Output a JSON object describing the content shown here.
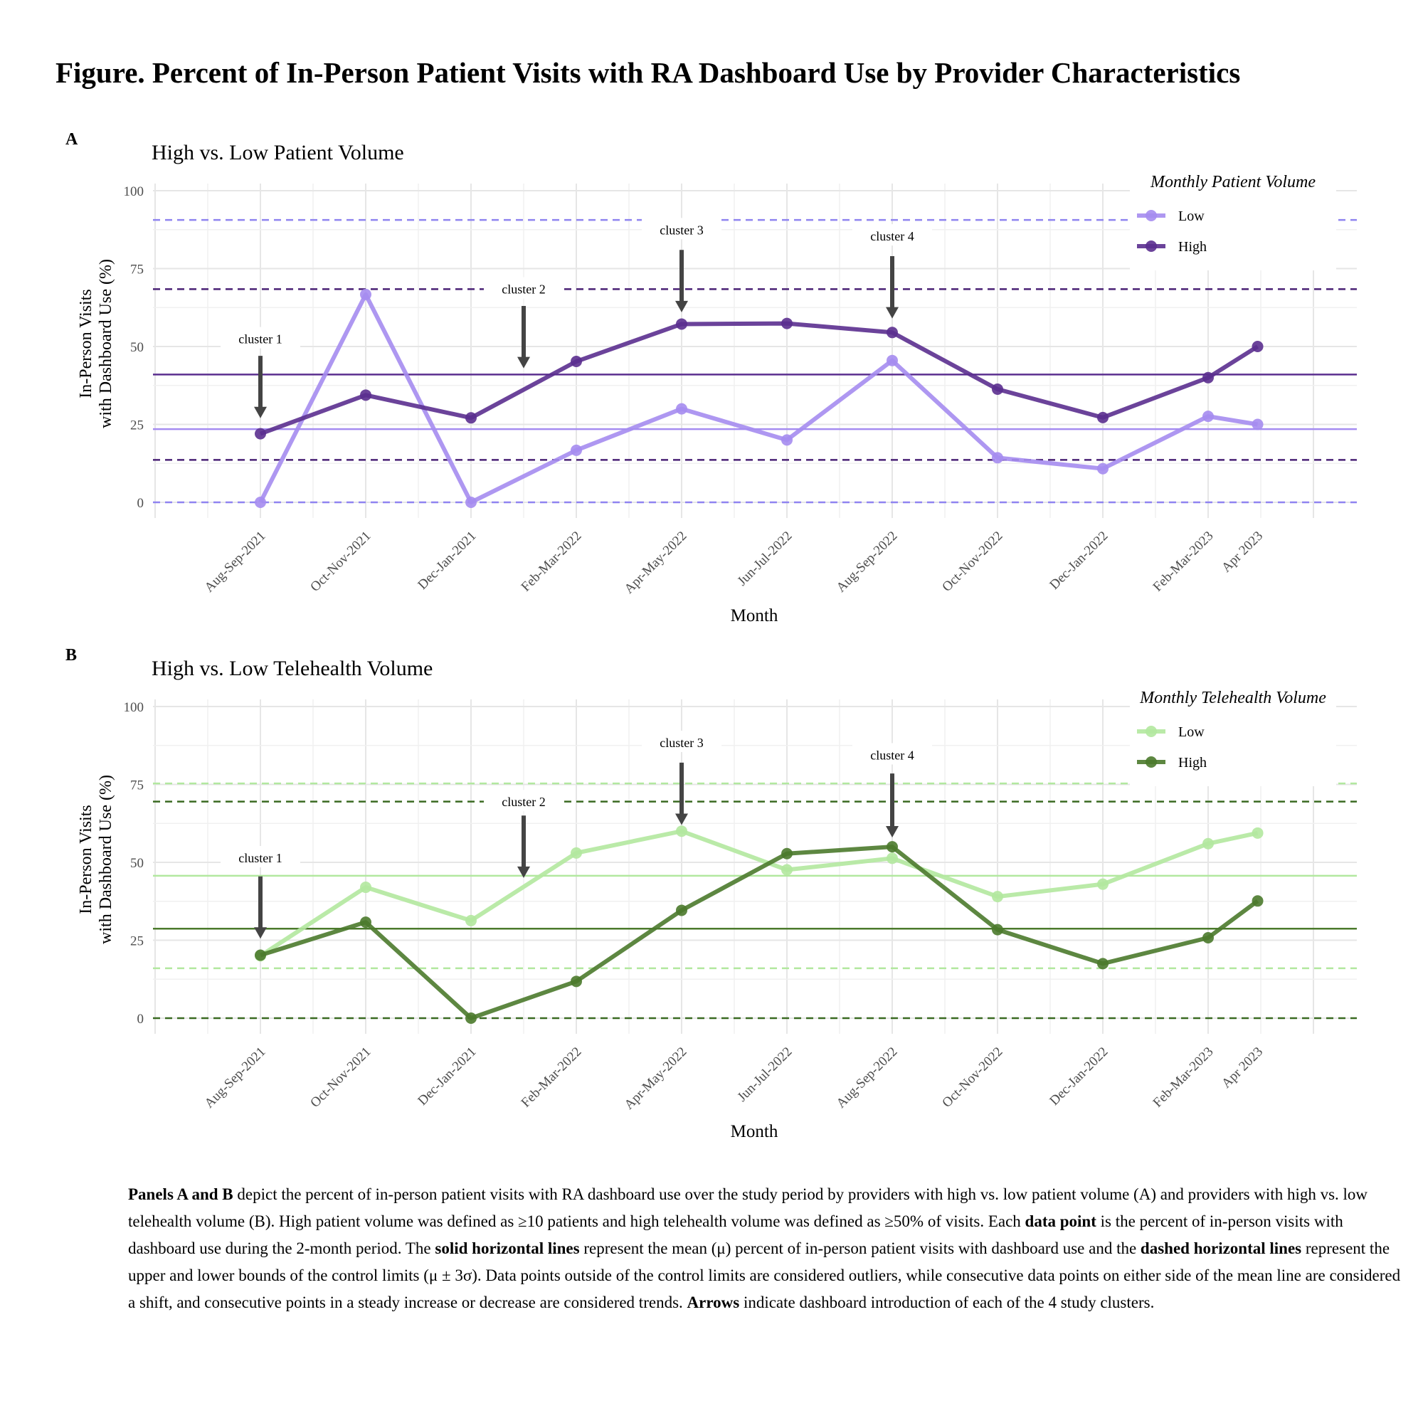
{
  "figure_title": "Figure. Percent of In-Person Patient Visits with RA Dashboard Use by Provider Characteristics",
  "caption": {
    "p1_bold": "Panels A and B",
    "p1": " depict the percent of in-person patient visits with RA dashboard use over the study period by providers with high vs. low patient volume (A) and providers with high vs. low telehealth volume (B). High patient volume was defined as ≥10 patients and high telehealth volume was defined as ≥50% of visits. Each ",
    "p2_bold": "data point",
    "p2": " is the percent of in-person visits with dashboard use during the 2-month period. The ",
    "p3_bold": "solid horizontal lines",
    "p3": " represent the mean (μ) percent of in-person patient visits with dashboard use and the ",
    "p4_bold": "dashed horizontal lines",
    "p4": " represent the upper and lower bounds of the control limits (μ ± 3σ). Data points outside of the control limits are considered outliers, while consecutive data points on either side of the mean line are considered a shift, and consecutive points in a steady increase or decrease are considered trends. ",
    "p5_bold": "Arrows",
    "p5": " indicate dashboard introduction of each of the 4 study clusters."
  },
  "chart_data": [
    {
      "panel": "A",
      "type": "line",
      "title": "High vs. Low Patient Volume",
      "xlabel": "Month",
      "ylabel_lines": [
        "In-Person Visits",
        "with Dashboard Use (%)"
      ],
      "ylim": [
        0,
        100
      ],
      "y_ticks": [
        0,
        25,
        50,
        75,
        100
      ],
      "categories": [
        "Aug-Sep-2021",
        "Oct-Nov-2021",
        "Dec-Jan-2021",
        "Feb-Mar-2022",
        "Apr-May-2022",
        "Jun-Jul-2022",
        "Aug-Sep-2022",
        "Oct-Nov-2022",
        "Dec-Jan-2022",
        "Feb-Mar-2023",
        "Apr 2023"
      ],
      "x_positions": [
        0,
        1,
        2,
        3,
        4,
        5,
        6,
        7,
        8,
        9,
        9.47
      ],
      "legend_title": "Monthly Patient Volume",
      "legend_position": "top-right",
      "series": [
        {
          "name": "Low",
          "color": "#a58cf0",
          "values": [
            0,
            66.7,
            0,
            16.7,
            30,
            20,
            45.5,
            14.3,
            10.8,
            27.6,
            25
          ],
          "mean": 23.5,
          "lcl": 0,
          "ucl": 90.6,
          "limit_color": "#8f84f0"
        },
        {
          "name": "High",
          "color": "#5b2f8f",
          "values": [
            22,
            34.4,
            27.1,
            45.2,
            57.2,
            57.4,
            54.5,
            36.3,
            27.2,
            40,
            50
          ],
          "mean": 41,
          "lcl": 13.6,
          "ucl": 68.4,
          "limit_color": "#4a2276"
        }
      ],
      "annotations": [
        {
          "label": "cluster 1",
          "x": 0,
          "label_y": 51,
          "tail_y": 47,
          "head_y": 27
        },
        {
          "label": "cluster 2",
          "x": 2.5,
          "label_y": 67,
          "tail_y": 63,
          "head_y": 43
        },
        {
          "label": "cluster 3",
          "x": 4,
          "label_y": 86,
          "tail_y": 81,
          "head_y": 61
        },
        {
          "label": "cluster 4",
          "x": 6,
          "label_y": 84,
          "tail_y": 79,
          "head_y": 59
        }
      ]
    },
    {
      "panel": "B",
      "type": "line",
      "title": "High vs. Low Telehealth Volume",
      "xlabel": "Month",
      "ylabel_lines": [
        "In-Person Visits",
        "with Dashboard Use (%)"
      ],
      "ylim": [
        0,
        100
      ],
      "y_ticks": [
        0,
        25,
        50,
        75,
        100
      ],
      "categories": [
        "Aug-Sep-2021",
        "Oct-Nov-2021",
        "Dec-Jan-2021",
        "Feb-Mar-2022",
        "Apr-May-2022",
        "Jun-Jul-2022",
        "Aug-Sep-2022",
        "Oct-Nov-2022",
        "Dec-Jan-2022",
        "Feb-Mar-2023",
        "Apr 2023"
      ],
      "x_positions": [
        0,
        1,
        2,
        3,
        4,
        5,
        6,
        7,
        8,
        9,
        9.47
      ],
      "legend_title": "Monthly Telehealth Volume",
      "legend_position": "top-right",
      "series": [
        {
          "name": "Low",
          "color": "#b2e89f",
          "values": [
            20,
            42,
            31.3,
            53,
            60,
            47.6,
            51.3,
            39,
            43,
            56,
            59.4
          ],
          "mean": 45.7,
          "lcl": 16,
          "ucl": 75.3,
          "limit_color": "#b2e89f"
        },
        {
          "name": "High",
          "color": "#4b7a2c",
          "values": [
            20.2,
            30.8,
            0,
            11.8,
            34.6,
            52.8,
            55,
            28.4,
            17.5,
            25.8,
            37.6
          ],
          "mean": 28.7,
          "lcl": 0,
          "ucl": 69.5,
          "limit_color": "#3a6a22"
        }
      ],
      "annotations": [
        {
          "label": "cluster 1",
          "x": 0,
          "label_y": 50,
          "tail_y": 45.5,
          "head_y": 25.5
        },
        {
          "label": "cluster 2",
          "x": 2.5,
          "label_y": 68,
          "tail_y": 65,
          "head_y": 45
        },
        {
          "label": "cluster 3",
          "x": 4,
          "label_y": 87,
          "tail_y": 82,
          "head_y": 62
        },
        {
          "label": "cluster 4",
          "x": 6,
          "label_y": 83,
          "tail_y": 78.5,
          "head_y": 58
        }
      ]
    }
  ]
}
